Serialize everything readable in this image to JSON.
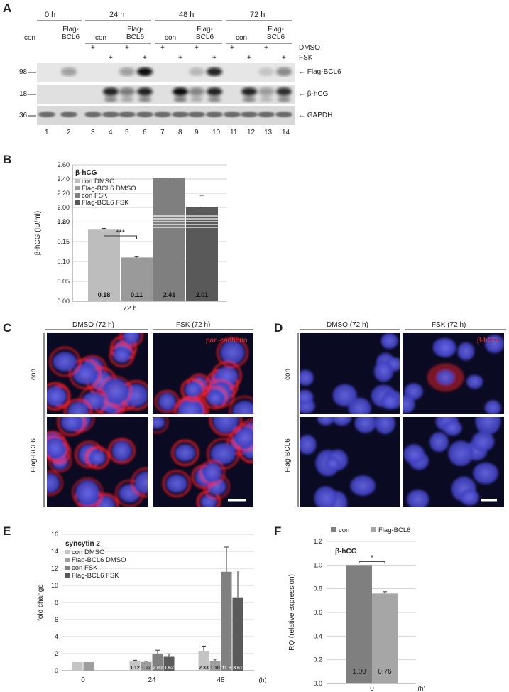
{
  "panel_labels": {
    "a": "A",
    "b": "B",
    "c": "C",
    "d": "D",
    "e": "E",
    "f": "F"
  },
  "blot": {
    "time_points": [
      "0 h",
      "24 h",
      "48 h",
      "72 h"
    ],
    "groups": [
      {
        "con": "con",
        "flag": "Flag-\nBCL6"
      },
      {
        "con": "con",
        "flag": "Flag-\nBCL6"
      },
      {
        "con": "con",
        "flag": "Flag-\nBCL6"
      },
      {
        "con": "con",
        "flag": "Flag-\nBCL6"
      }
    ],
    "row_dmso": "DMSO",
    "row_fsk": "FSK",
    "plus": "+",
    "markers": [
      "98",
      "18",
      "36"
    ],
    "bands": [
      "Flag-BCL6",
      "β-hCG",
      "GAPDH"
    ],
    "lanes": [
      "1",
      "2",
      "3",
      "4",
      "5",
      "6",
      "7",
      "8",
      "9",
      "10",
      "11",
      "12",
      "13",
      "14"
    ]
  },
  "chartB": {
    "type": "bar",
    "title": "β-hCG",
    "ylabel": "β-hCG (IU/ml)",
    "xlabel": "72 h",
    "categories": [
      "72 h"
    ],
    "legend": [
      "con DMSO",
      "Flag-BCL6 DMSO",
      "con FSK",
      "Flag-BCL6 FSK"
    ],
    "lower_ticks": [
      "0.00",
      "0.05",
      "0.10",
      "0.15",
      "0.20"
    ],
    "upper_ticks": [
      "1.80",
      "2.00",
      "2.20",
      "2.40",
      "2.60"
    ],
    "significance": "***",
    "colors": [
      "#bdbdbd",
      "#9a9a9a",
      "#7f7f7f",
      "#595959"
    ]
  },
  "chart_data": [
    {
      "type": "bar",
      "title": "β-hCG",
      "ylabel": "β-hCG (IU/ml)",
      "xlabel": "72 h",
      "categories": [
        "72 h"
      ],
      "series": [
        {
          "name": "con DMSO",
          "values": [
            0.18
          ],
          "error": [
            0.003
          ]
        },
        {
          "name": "Flag-BCL6 DMSO",
          "values": [
            0.11
          ],
          "error": [
            0.002
          ]
        },
        {
          "name": "con FSK",
          "values": [
            2.41
          ],
          "error": [
            0.005
          ]
        },
        {
          "name": "Flag-BCL6 FSK",
          "values": [
            2.01
          ],
          "error": [
            0.16
          ]
        }
      ],
      "data_labels": [
        "0.18",
        "0.11",
        "2.41",
        "2.01"
      ],
      "axis_break": [
        0.2,
        1.8
      ]
    },
    {
      "type": "bar",
      "title": "syncytin 2",
      "ylabel": "fold change",
      "categories": [
        "0",
        "24",
        "48"
      ],
      "x_unit": "(h)",
      "ylim": [
        0,
        16
      ],
      "yticks": [
        "0",
        "2",
        "4",
        "6",
        "8",
        "10",
        "12",
        "14",
        "16"
      ],
      "series": [
        {
          "name": "con DMSO",
          "values": [
            1,
            1.12,
            2.33
          ],
          "error": [
            0,
            0.1,
            0.55
          ]
        },
        {
          "name": "Flag-BCL6 DMSO",
          "values": [
            1,
            1.02,
            1.1
          ],
          "error": [
            0,
            0.08,
            0.25
          ]
        },
        {
          "name": "con FSK",
          "values": [
            null,
            2.0,
            11.6
          ],
          "error": [
            null,
            0.4,
            2.9
          ]
        },
        {
          "name": "Flag-BCL6 FSK",
          "values": [
            null,
            1.62,
            8.61
          ],
          "error": [
            null,
            0.35,
            3.1
          ]
        }
      ],
      "data_labels": [
        [
          "1.12",
          "1.02",
          "2.00",
          "1.62"
        ],
        [
          "2.33",
          "1.10",
          "11.6",
          "8.61"
        ]
      ]
    },
    {
      "type": "bar",
      "title": "β-hCG",
      "ylabel": "RQ (relative expression)",
      "categories": [
        "0"
      ],
      "x_unit": "(h)",
      "ylim": [
        0,
        1.2
      ],
      "yticks": [
        "0.0",
        "0.2",
        "0.4",
        "0.6",
        "0.8",
        "1.0",
        "1.2"
      ],
      "series": [
        {
          "name": "con",
          "values": [
            1.0
          ],
          "error": [
            0
          ]
        },
        {
          "name": "Flag-BCL6",
          "values": [
            0.76
          ],
          "error": [
            0.015
          ]
        }
      ],
      "data_labels": [
        "1.00",
        "0.76"
      ],
      "significance": "*",
      "colors": [
        "#7f7f7f",
        "#a6a6a6"
      ]
    }
  ],
  "chartE": {
    "title": "syncytin 2",
    "ylabel": "fold change",
    "legend": [
      "con DMSO",
      "Flag-BCL6 DMSO",
      "con FSK",
      "Flag-BCL6 FSK"
    ],
    "categories": [
      "0",
      "24",
      "48"
    ],
    "x_unit": "(h)",
    "yticks": [
      "0",
      "2",
      "4",
      "6",
      "8",
      "10",
      "12",
      "14",
      "16"
    ],
    "colors": [
      "#c4c4c4",
      "#9e9e9e",
      "#808080",
      "#5a5a5a"
    ]
  },
  "chartF": {
    "title": "β-hCG",
    "ylabel": "RQ (relative expression)",
    "legend": [
      "con",
      "Flag-BCL6"
    ],
    "categories": [
      "0"
    ],
    "x_unit": "(h)",
    "yticks": [
      "0.0",
      "0.2",
      "0.4",
      "0.6",
      "0.8",
      "1.0",
      "1.2"
    ],
    "significance": "*"
  },
  "panelC": {
    "headers": [
      "DMSO (72 h)",
      "FSK (72 h)"
    ],
    "rows": [
      "con",
      "Flag-BCL6"
    ],
    "stain": "pan-cadherin"
  },
  "panelD": {
    "headers": [
      "DMSO (72 h)",
      "FSK (72 h)"
    ],
    "rows": [
      "con",
      "Flag-BCL6"
    ],
    "stain": "β-hCG"
  }
}
